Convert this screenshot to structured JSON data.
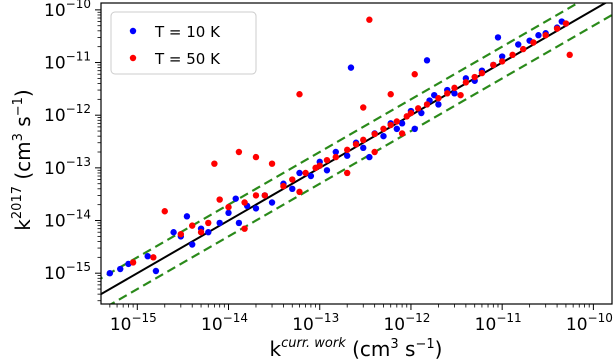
{
  "chart_data": {
    "type": "scatter",
    "x_scale": "log",
    "y_scale": "log",
    "xlim": [
      4e-16,
      1.6e-10
    ],
    "ylim": [
      2.6e-16,
      1.35e-10
    ],
    "x_ticks": [
      1e-15,
      1e-14,
      1e-13,
      1e-12,
      1e-11,
      1e-10
    ],
    "y_ticks": [
      1e-15,
      1e-14,
      1e-13,
      1e-12,
      1e-11,
      1e-10
    ],
    "tick_label_base": "10",
    "x_tick_exponents": [
      "−15",
      "−14",
      "−13",
      "−12",
      "−11",
      "−10"
    ],
    "y_tick_exponents": [
      "−15",
      "−14",
      "−13",
      "−12",
      "−11",
      "−10"
    ],
    "xlabel": {
      "base": "k",
      "sup": "curr. work",
      "units_pre": " (cm",
      "units_mid": "3",
      "units_post": " s",
      "units_exp": "−1",
      "units_close": ")"
    },
    "ylabel": {
      "base": "k",
      "sup": "2017",
      "units_pre": " (cm",
      "units_mid": "3",
      "units_post": " s",
      "units_exp": "−1",
      "units_close": ")"
    },
    "legend": {
      "placement": "top-left",
      "entries": [
        "T = 10 K",
        "T = 50 K"
      ]
    },
    "colors": {
      "T10": "#0000ff",
      "T50": "#ff0000",
      "identity": "#000000",
      "bounds": "#2a8a1a"
    },
    "reference_lines": [
      {
        "kind": "identity",
        "y_equals_x_times": 1,
        "style": "solid"
      },
      {
        "kind": "upper-bound",
        "y_equals_x_times": 2.0,
        "style": "dashed"
      },
      {
        "kind": "lower-bound",
        "y_equals_x_times": 0.5,
        "style": "dashed"
      }
    ],
    "series": [
      {
        "name": "T = 10 K",
        "color": "#0000ff",
        "points": [
          [
            5e-16,
            1e-15
          ],
          [
            6.5e-16,
            1.2e-15
          ],
          [
            8e-16,
            1.5e-15
          ],
          [
            1.3e-15,
            2.1e-15
          ],
          [
            1.6e-15,
            1.1e-15
          ],
          [
            2.5e-15,
            6e-15
          ],
          [
            3e-15,
            5e-15
          ],
          [
            4e-15,
            3.5e-15
          ],
          [
            5e-15,
            7e-15
          ],
          [
            6e-15,
            6e-15
          ],
          [
            8e-15,
            9e-15
          ],
          [
            1e-14,
            1.4e-14
          ],
          [
            1.3e-14,
            9e-15
          ],
          [
            1.6e-14,
            1.9e-14
          ],
          [
            2e-14,
            1.7e-14
          ],
          [
            2.5e-14,
            3e-14
          ],
          [
            3e-14,
            2.2e-14
          ],
          [
            4e-14,
            5e-14
          ],
          [
            5e-14,
            4e-14
          ],
          [
            6e-14,
            8e-14
          ],
          [
            8e-14,
            7e-14
          ],
          [
            1e-13,
            1.3e-13
          ],
          [
            1.2e-13,
            9e-14
          ],
          [
            1.5e-13,
            2e-13
          ],
          [
            2e-13,
            1.7e-13
          ],
          [
            2.5e-13,
            3e-13
          ],
          [
            3e-13,
            2.4e-13
          ],
          [
            4e-13,
            4.5e-13
          ],
          [
            5e-13,
            4e-13
          ],
          [
            6e-13,
            7e-13
          ],
          [
            8e-13,
            7e-13
          ],
          [
            1e-12,
            1.2e-12
          ],
          [
            1.3e-12,
            1.1e-12
          ],
          [
            1.6e-12,
            1.9e-12
          ],
          [
            2e-12,
            1.6e-12
          ],
          [
            2.5e-12,
            3e-12
          ],
          [
            3e-12,
            2.6e-12
          ],
          [
            4e-12,
            5e-12
          ],
          [
            5e-12,
            4.5e-12
          ],
          [
            6e-12,
            7e-12
          ],
          [
            8e-12,
            9e-12
          ],
          [
            1e-11,
            1.3e-11
          ],
          [
            1.5e-11,
            2.2e-11
          ],
          [
            2e-11,
            2.6e-11
          ],
          [
            3e-11,
            3.6e-11
          ],
          [
            4e-11,
            4.6e-11
          ],
          [
            5e-11,
            5.5e-11
          ],
          [
            4.5e-11,
            6e-11
          ],
          [
            2.5e-11,
            3.3e-11
          ],
          [
            3.5e-15,
            1.2e-14
          ],
          [
            2.2e-13,
            8e-12
          ],
          [
            1.5e-12,
            1.1e-11
          ],
          [
            9e-12,
            3e-11
          ],
          [
            1.1e-12,
            5.5e-13
          ],
          [
            1.8e-12,
            2.4e-12
          ],
          [
            7e-13,
            5.5e-13
          ],
          [
            3.5e-13,
            1.6e-13
          ],
          [
            1.2e-14,
            2.6e-14
          ]
        ]
      },
      {
        "name": "T = 50 K",
        "color": "#ff0000",
        "points": [
          [
            9e-16,
            1.6e-15
          ],
          [
            1.5e-15,
            2e-15
          ],
          [
            2e-15,
            1.5e-14
          ],
          [
            3e-15,
            5.5e-15
          ],
          [
            4e-15,
            8e-15
          ],
          [
            5e-15,
            6e-15
          ],
          [
            6e-15,
            9e-15
          ],
          [
            8e-15,
            2.5e-14
          ],
          [
            1e-14,
            1.8e-14
          ],
          [
            1.3e-14,
            2e-13
          ],
          [
            1.5e-14,
            2.2e-14
          ],
          [
            2e-14,
            3e-14
          ],
          [
            2.5e-14,
            3e-14
          ],
          [
            3e-14,
            1.2e-13
          ],
          [
            4e-14,
            4.5e-14
          ],
          [
            5e-14,
            6e-14
          ],
          [
            6e-14,
            2.5e-12
          ],
          [
            7e-14,
            8e-14
          ],
          [
            9e-14,
            1e-13
          ],
          [
            1e-13,
            1.1e-13
          ],
          [
            1.2e-13,
            1.4e-13
          ],
          [
            1.5e-13,
            1.6e-13
          ],
          [
            2e-13,
            2.2e-13
          ],
          [
            2.5e-13,
            2.8e-13
          ],
          [
            3e-13,
            3.4e-13
          ],
          [
            3.5e-13,
            6.5e-11
          ],
          [
            4e-13,
            4.4e-13
          ],
          [
            5e-13,
            5.5e-13
          ],
          [
            6e-13,
            6.5e-13
          ],
          [
            7e-13,
            7.6e-13
          ],
          [
            9e-13,
            9.5e-13
          ],
          [
            1e-12,
            1.1e-12
          ],
          [
            1.2e-12,
            1.35e-12
          ],
          [
            1.5e-12,
            1.6e-12
          ],
          [
            2e-12,
            2.1e-12
          ],
          [
            2.5e-12,
            2.6e-12
          ],
          [
            3e-12,
            3.3e-12
          ],
          [
            3.5e-12,
            2.4e-12
          ],
          [
            4e-12,
            4.2e-12
          ],
          [
            5e-12,
            5.3e-12
          ],
          [
            6e-12,
            6.3e-12
          ],
          [
            8e-12,
            9e-12
          ],
          [
            1e-11,
            1.05e-11
          ],
          [
            1.3e-11,
            1.4e-11
          ],
          [
            1.7e-11,
            1.8e-11
          ],
          [
            2.2e-11,
            2.4e-11
          ],
          [
            3e-11,
            3.3e-11
          ],
          [
            4e-11,
            4.4e-11
          ],
          [
            5e-11,
            5.5e-11
          ],
          [
            5.5e-11,
            1.4e-11
          ],
          [
            2e-14,
            1.6e-13
          ],
          [
            7e-15,
            1.2e-13
          ],
          [
            3e-13,
            1.4e-12
          ],
          [
            6e-13,
            2.5e-12
          ],
          [
            1.1e-12,
            6e-12
          ],
          [
            4e-13,
            2e-13
          ],
          [
            8e-13,
            4.5e-13
          ],
          [
            2e-13,
            8e-14
          ],
          [
            1.5e-14,
            7e-15
          ],
          [
            6e-14,
            3.5e-14
          ]
        ]
      }
    ]
  }
}
